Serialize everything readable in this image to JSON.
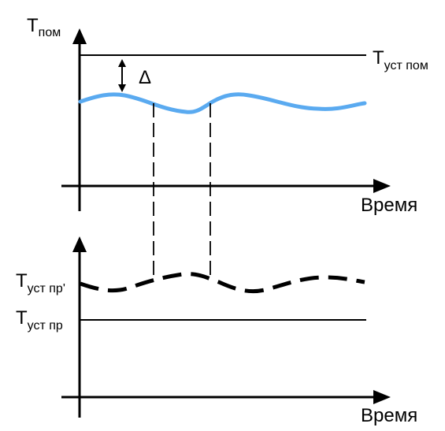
{
  "colors": {
    "ink": "#000000",
    "room_wave": "#5aaaf0",
    "background": "#ffffff"
  },
  "top_chart": {
    "y_axis_label": {
      "main": "T",
      "sub": "пом"
    },
    "x_axis_label": "Время",
    "setpoint_label": {
      "main": "T",
      "sub": "уст пом"
    },
    "delta_label": "Δ"
  },
  "bottom_chart": {
    "x_axis_label": "Время",
    "shifted_setpoint_label": {
      "main": "T",
      "sub": "уст пр'"
    },
    "setpoint_label": {
      "main": "T",
      "sub": "уст пр"
    }
  }
}
